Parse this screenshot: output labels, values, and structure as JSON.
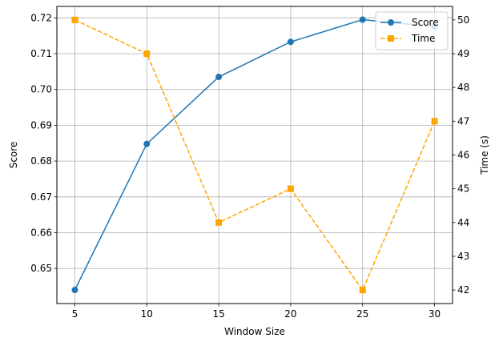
{
  "chart_data": {
    "type": "line",
    "x": [
      5,
      10,
      15,
      20,
      25,
      30
    ],
    "xlabel": "Window Size",
    "ylabel_left": "Score",
    "ylabel_right": "Time (s)",
    "xlim": [
      3.75,
      31.25
    ],
    "ylim_left": [
      0.6402,
      0.7232
    ],
    "ylim_right": [
      41.6,
      50.4
    ],
    "x_ticks": [
      5,
      10,
      15,
      20,
      25,
      30
    ],
    "y_left_ticks": [
      0.65,
      0.66,
      0.67,
      0.68,
      0.69,
      0.7,
      0.71,
      0.72
    ],
    "y_left_tick_labels": [
      "0.65",
      "0.66",
      "0.67",
      "0.68",
      "0.69",
      "0.70",
      "0.71",
      "0.72"
    ],
    "y_right_ticks": [
      42,
      43,
      44,
      45,
      46,
      47,
      48,
      49,
      50
    ],
    "grid": true,
    "legend_position": "top-right",
    "series": [
      {
        "name": "Score",
        "axis": "left",
        "values": [
          0.644,
          0.6848,
          0.7035,
          0.7133,
          0.7195,
          0.7175
        ],
        "color": "#1f77b4",
        "line_style": "solid",
        "marker": "circle"
      },
      {
        "name": "Time",
        "axis": "right",
        "values": [
          50,
          49,
          44,
          45,
          42,
          47
        ],
        "color": "#ffa500",
        "line_style": "dashed",
        "marker": "square"
      }
    ]
  }
}
